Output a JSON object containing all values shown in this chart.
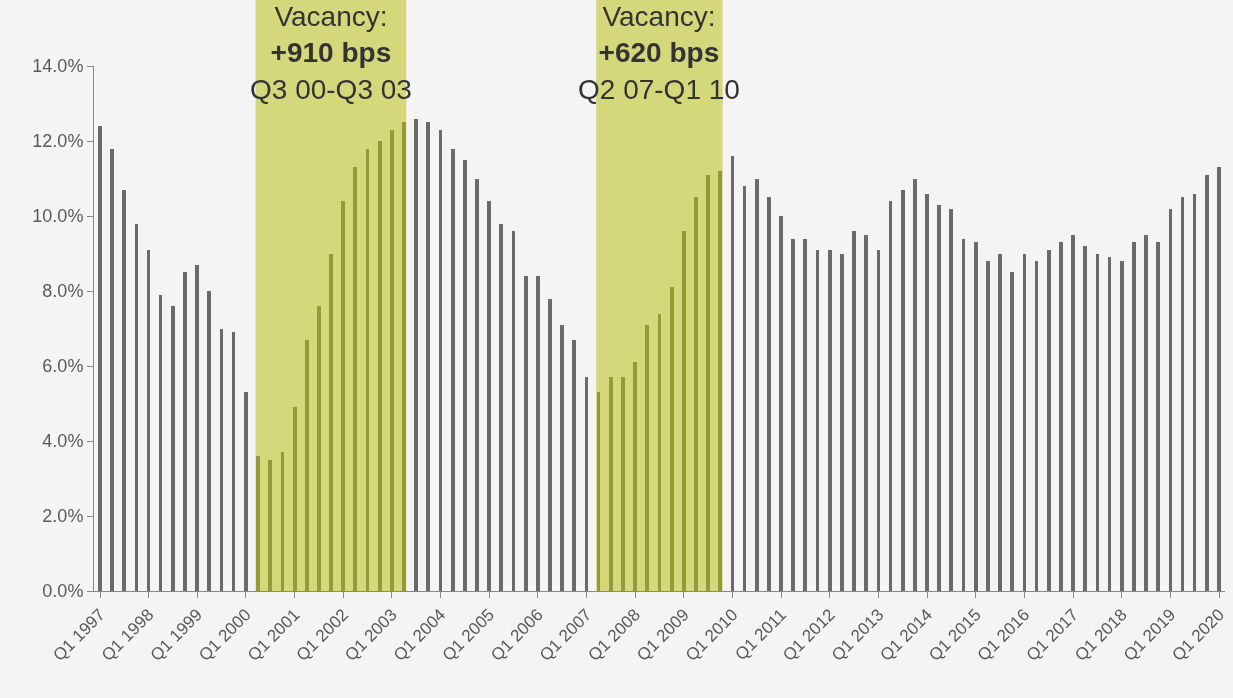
{
  "chart_data": {
    "type": "bar",
    "x": [
      "1997-01",
      "1997-04",
      "1997-07",
      "1997-10",
      "1998-01",
      "1998-04",
      "1998-07",
      "1998-10",
      "1999-01",
      "1999-04",
      "1999-07",
      "1999-10",
      "2000-01",
      "2000-04",
      "2000-07",
      "2000-10",
      "2001-01",
      "2001-04",
      "2001-07",
      "2001-10",
      "2002-01",
      "2002-04",
      "2002-07",
      "2002-10",
      "2003-01",
      "2003-04",
      "2003-07",
      "2003-10",
      "2004-01",
      "2004-04",
      "2004-07",
      "2004-10",
      "2005-01",
      "2005-04",
      "2005-07",
      "2005-10",
      "2006-01",
      "2006-04",
      "2006-07",
      "2006-10",
      "2007-01",
      "2007-04",
      "2007-07",
      "2007-10",
      "2008-01",
      "2008-04",
      "2008-07",
      "2008-10",
      "2009-01",
      "2009-04",
      "2009-07",
      "2009-10",
      "2010-01",
      "2010-04",
      "2010-07",
      "2010-10",
      "2011-01",
      "2011-04",
      "2011-07",
      "2011-10",
      "2012-01",
      "2012-04",
      "2012-07",
      "2012-10",
      "2013-01",
      "2013-04",
      "2013-07",
      "2013-10",
      "2014-01",
      "2014-04",
      "2014-07",
      "2014-10",
      "2015-01",
      "2015-04",
      "2015-07",
      "2015-10",
      "2016-01",
      "2016-04",
      "2016-07",
      "2016-10",
      "2017-01",
      "2017-04",
      "2017-07",
      "2017-10",
      "2018-01",
      "2018-04",
      "2018-07",
      "2018-10",
      "2019-01",
      "2019-04",
      "2019-07",
      "2019-10",
      "2020-01"
    ],
    "values": [
      12.4,
      11.8,
      10.7,
      9.8,
      9.1,
      7.9,
      7.6,
      8.5,
      8.7,
      8.0,
      7.0,
      6.9,
      5.3,
      3.6,
      3.5,
      3.7,
      4.9,
      6.7,
      7.6,
      9.0,
      10.4,
      11.3,
      11.8,
      12.0,
      12.3,
      12.5,
      12.6,
      12.5,
      12.3,
      11.8,
      11.5,
      11.0,
      10.4,
      9.8,
      9.6,
      8.4,
      8.4,
      7.8,
      7.1,
      6.7,
      5.7,
      5.3,
      5.7,
      5.7,
      6.1,
      7.1,
      7.4,
      8.1,
      9.6,
      10.5,
      11.1,
      11.2,
      11.6,
      10.8,
      11.0,
      10.5,
      10.0,
      9.4,
      9.4,
      9.1,
      9.1,
      9.0,
      9.6,
      9.5,
      9.1,
      10.4,
      10.7,
      11.0,
      10.6,
      10.3,
      10.2,
      9.4,
      9.3,
      8.8,
      9.0,
      8.5,
      9.0,
      8.8,
      9.1,
      9.3,
      9.5,
      9.2,
      9.0,
      8.9,
      8.8,
      9.3,
      9.5,
      9.3,
      10.2,
      10.5,
      10.6,
      11.1,
      11.3
    ],
    "colors": [
      "#6a6a6a",
      "#6a6a6a",
      "#6a6a6a",
      "#6a6a6a",
      "#6a6a6a",
      "#6a6a6a",
      "#6a6a6a",
      "#6a6a6a",
      "#6a6a6a",
      "#6a6a6a",
      "#6a6a6a",
      "#6a6a6a",
      "#6a6a6a",
      "#949a34",
      "#949a34",
      "#949a34",
      "#949a34",
      "#949a34",
      "#949a34",
      "#949a34",
      "#949a34",
      "#949a34",
      "#949a34",
      "#949a34",
      "#949a34",
      "#949a34",
      "#6a6a6a",
      "#6a6a6a",
      "#6a6a6a",
      "#6a6a6a",
      "#6a6a6a",
      "#6a6a6a",
      "#6a6a6a",
      "#6a6a6a",
      "#6a6a6a",
      "#6a6a6a",
      "#6a6a6a",
      "#6a6a6a",
      "#6a6a6a",
      "#6a6a6a",
      "#6a6a6a",
      "#949a34",
      "#949a34",
      "#949a34",
      "#949a34",
      "#949a34",
      "#949a34",
      "#949a34",
      "#949a34",
      "#949a34",
      "#949a34",
      "#949a34",
      "#6a6a6a",
      "#6a6a6a",
      "#6a6a6a",
      "#6a6a6a",
      "#6a6a6a",
      "#6a6a6a",
      "#6a6a6a",
      "#6a6a6a",
      "#6a6a6a",
      "#6a6a6a",
      "#6a6a6a",
      "#6a6a6a",
      "#6a6a6a",
      "#6a6a6a",
      "#6a6a6a",
      "#6a6a6a",
      "#6a6a6a",
      "#6a6a6a",
      "#6a6a6a",
      "#6a6a6a",
      "#6a6a6a",
      "#6a6a6a",
      "#6a6a6a",
      "#6a6a6a",
      "#6a6a6a",
      "#6a6a6a",
      "#6a6a6a",
      "#6a6a6a",
      "#6a6a6a",
      "#6a6a6a",
      "#6a6a6a",
      "#6a6a6a",
      "#6a6a6a",
      "#6a6a6a",
      "#6a6a6a",
      "#6a6a6a",
      "#6a6a6a",
      "#6a6a6a",
      "#6a6a6a",
      "#6a6a6a",
      "#6a6a6a"
    ],
    "xlim": [
      "1996-11-17",
      "2020-02-14"
    ],
    "xticks": [
      {
        "value": "1997-01",
        "label": "Q1 1997"
      },
      {
        "value": "1998-01",
        "label": "Q1 1998"
      },
      {
        "value": "1999-01",
        "label": "Q1 1999"
      },
      {
        "value": "2000-01",
        "label": "Q1 2000"
      },
      {
        "value": "2001-01",
        "label": "Q1 2001"
      },
      {
        "value": "2002-01",
        "label": "Q1 2002"
      },
      {
        "value": "2003-01",
        "label": "Q1 2003"
      },
      {
        "value": "2004-01",
        "label": "Q1 2004"
      },
      {
        "value": "2005-01",
        "label": "Q1 2005"
      },
      {
        "value": "2006-01",
        "label": "Q1 2006"
      },
      {
        "value": "2007-01",
        "label": "Q1 2007"
      },
      {
        "value": "2008-01",
        "label": "Q1 2008"
      },
      {
        "value": "2009-01",
        "label": "Q1 2009"
      },
      {
        "value": "2010-01",
        "label": "Q1 2010"
      },
      {
        "value": "2011-01",
        "label": "Q1 2011"
      },
      {
        "value": "2012-01",
        "label": "Q1 2012"
      },
      {
        "value": "2013-01",
        "label": "Q1 2013"
      },
      {
        "value": "2014-01",
        "label": "Q1 2014"
      },
      {
        "value": "2015-01",
        "label": "Q1 2015"
      },
      {
        "value": "2016-01",
        "label": "Q1 2016"
      },
      {
        "value": "2017-01",
        "label": "Q1 2017"
      },
      {
        "value": "2018-01",
        "label": "Q1 2018"
      },
      {
        "value": "2019-01",
        "label": "Q1 2019"
      },
      {
        "value": "2020-01",
        "label": "Q1 2020"
      }
    ],
    "ylim": [
      0,
      14
    ],
    "yticks": [
      {
        "value": 0,
        "label": "0.0%"
      },
      {
        "value": 2,
        "label": "2.0%"
      },
      {
        "value": 4,
        "label": "4.0%"
      },
      {
        "value": 6,
        "label": "6.0%"
      },
      {
        "value": 8,
        "label": "8.0%"
      },
      {
        "value": 10,
        "label": "10.0%"
      },
      {
        "value": 12,
        "label": "12.0%"
      },
      {
        "value": 14,
        "label": "14.0%"
      }
    ],
    "bands": [
      {
        "axis": "x",
        "from": "2000-03-14",
        "to": "2003-04-19",
        "label": "Vacancy:\n+910 bps\nQ3 00-Q3 03",
        "color": "#d4d87a"
      },
      {
        "axis": "x",
        "from": "2007-03-14",
        "to": "2009-10-19",
        "label": "Vacancy:\n+620 bps\nQ2 07-Q1 10",
        "color": "#d4d87a"
      }
    ]
  }
}
